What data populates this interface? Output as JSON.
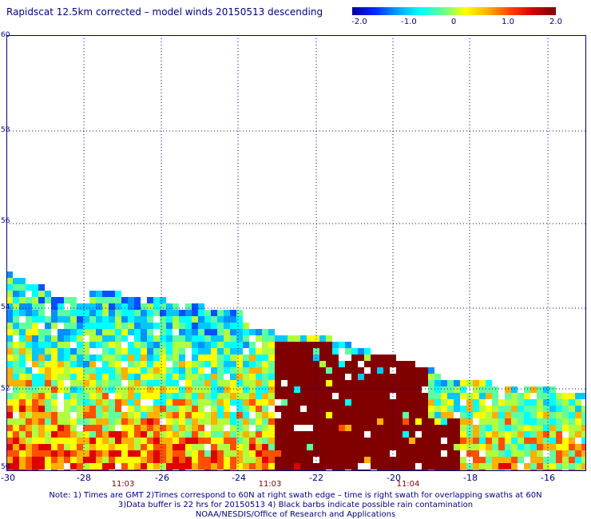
{
  "title": "Rapidscat 12.5km corrected – model winds 20150513 descending",
  "colorbar": {
    "labels": [
      "-2.0",
      "-1.0",
      "0",
      "1.0",
      "2.0"
    ],
    "range": [
      -2.0,
      2.0
    ]
  },
  "map": {
    "lon_range": [
      -30,
      -15
    ],
    "lat_range": [
      50,
      60
    ],
    "x_ticks": [
      "-30",
      "-28",
      "-26",
      "-24",
      "-22",
      "-20",
      "-18",
      "-16"
    ],
    "y_ticks": [
      "50",
      "52",
      "54",
      "56",
      "58",
      "60"
    ],
    "time_labels": [
      "11:03",
      "11:03",
      "11:04"
    ]
  },
  "notes": [
    "Note: 1) Times are GMT 2)Times correspond to 60N at right swath edge – time is right swath for overlapping swaths at 60N",
    "3)Data buffer is 22 hrs for 20150513 4) Black barbs indicate possible rain contamination",
    "NOAA/NESDIS/Office of Research and Applications"
  ]
}
